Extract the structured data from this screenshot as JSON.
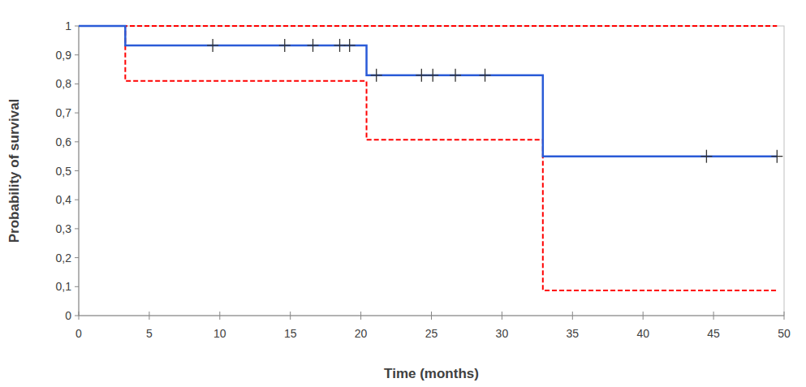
{
  "chart_data": {
    "type": "step",
    "x_label": "Time (months)",
    "y_label": "Probability of survival",
    "xlim": [
      0,
      50
    ],
    "ylim": [
      0,
      1
    ],
    "xticks": [
      0,
      5,
      10,
      15,
      20,
      25,
      30,
      35,
      40,
      45,
      50
    ],
    "yticks": [
      0,
      {
        "value": 0.1,
        "label": "0,1"
      },
      {
        "value": 0.2,
        "label": "0,2"
      },
      {
        "value": 0.3,
        "label": "0,3"
      },
      {
        "value": 0.4,
        "label": "0,4"
      },
      {
        "value": 0.5,
        "label": "0,5"
      },
      {
        "value": 0.6,
        "label": "0,6"
      },
      {
        "value": 0.7,
        "label": "0,7"
      },
      {
        "value": 0.8,
        "label": "0,8"
      },
      {
        "value": 0.9,
        "label": "0,9"
      },
      1
    ],
    "grid": false,
    "series": [
      {
        "type": "step",
        "color": "#ff0000",
        "line_style": "dashed",
        "x": [
          0,
          49.5
        ],
        "values": [
          1,
          1
        ]
      },
      {
        "type": "step",
        "color": "#ff0000",
        "line_style": "dashed",
        "x": [
          0,
          3.3,
          20.4,
          32.9,
          49.5
        ],
        "values": [
          1,
          0.81,
          0.607,
          0.087,
          0.087
        ]
      },
      {
        "type": "step",
        "color": "#2a5bd7",
        "line_style": "solid",
        "x": [
          0,
          3.3,
          20.4,
          32.9,
          49.5
        ],
        "values": [
          1,
          0.933,
          0.83,
          0.55,
          0.55
        ]
      },
      {
        "type": "scatter",
        "color": "#333333",
        "marker": "plus",
        "x": [
          9.5,
          14.6,
          16.6,
          18.5,
          19.2,
          21.1,
          24.3,
          25.1,
          26.7,
          28.8,
          44.5,
          49.5
        ],
        "values": [
          0.933,
          0.933,
          0.933,
          0.933,
          0.933,
          0.83,
          0.83,
          0.83,
          0.83,
          0.83,
          0.55,
          0.55
        ]
      }
    ]
  }
}
